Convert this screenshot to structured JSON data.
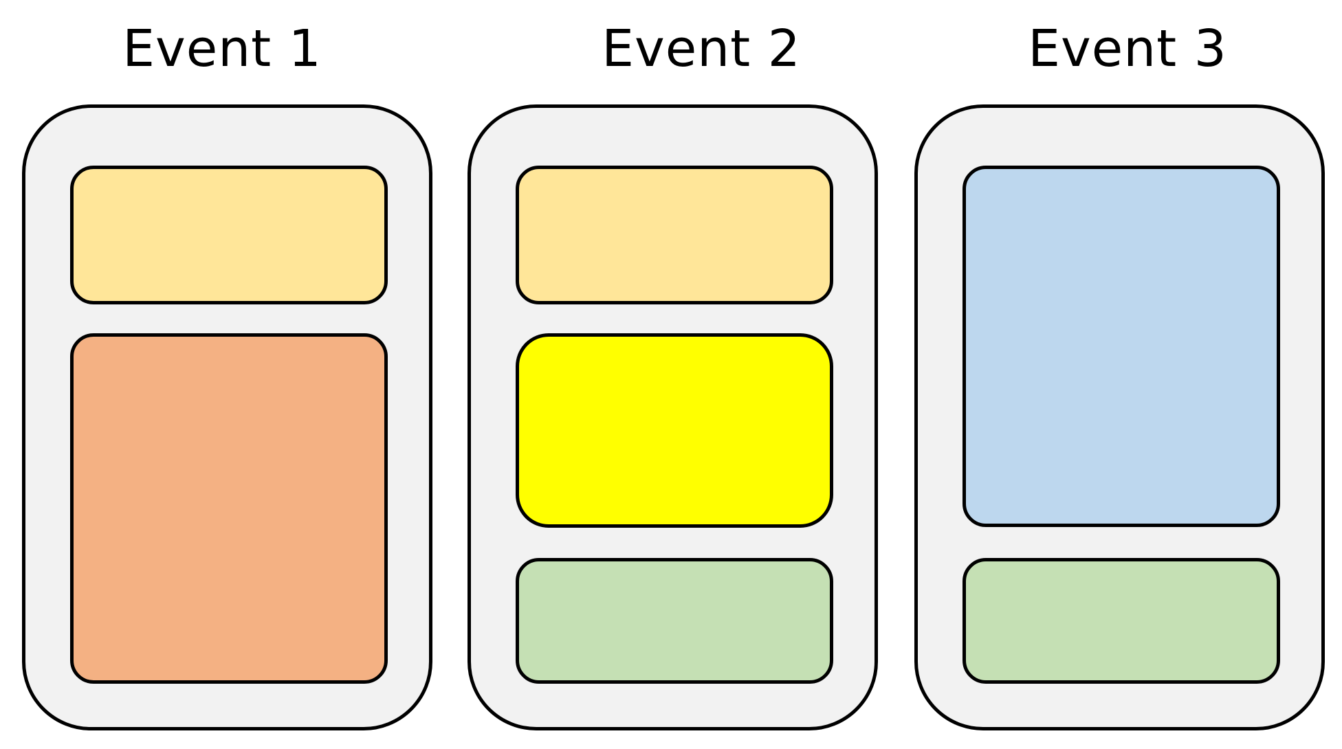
{
  "events": [
    {
      "title": "Event 1",
      "panel_color": "#f2f2f2",
      "blocks": [
        {
          "color": "#ffe699"
        },
        {
          "color": "#f4b183"
        }
      ]
    },
    {
      "title": "Event 2",
      "panel_color": "#f2f2f2",
      "blocks": [
        {
          "color": "#ffe699"
        },
        {
          "color": "#ffff00"
        },
        {
          "color": "#c5e0b4"
        }
      ]
    },
    {
      "title": "Event 3",
      "panel_color": "#f2f2f2",
      "blocks": [
        {
          "color": "#bdd7ee"
        },
        {
          "color": "#c5e0b4"
        }
      ]
    }
  ],
  "colors": {
    "border": "#000000",
    "background": "#ffffff"
  }
}
